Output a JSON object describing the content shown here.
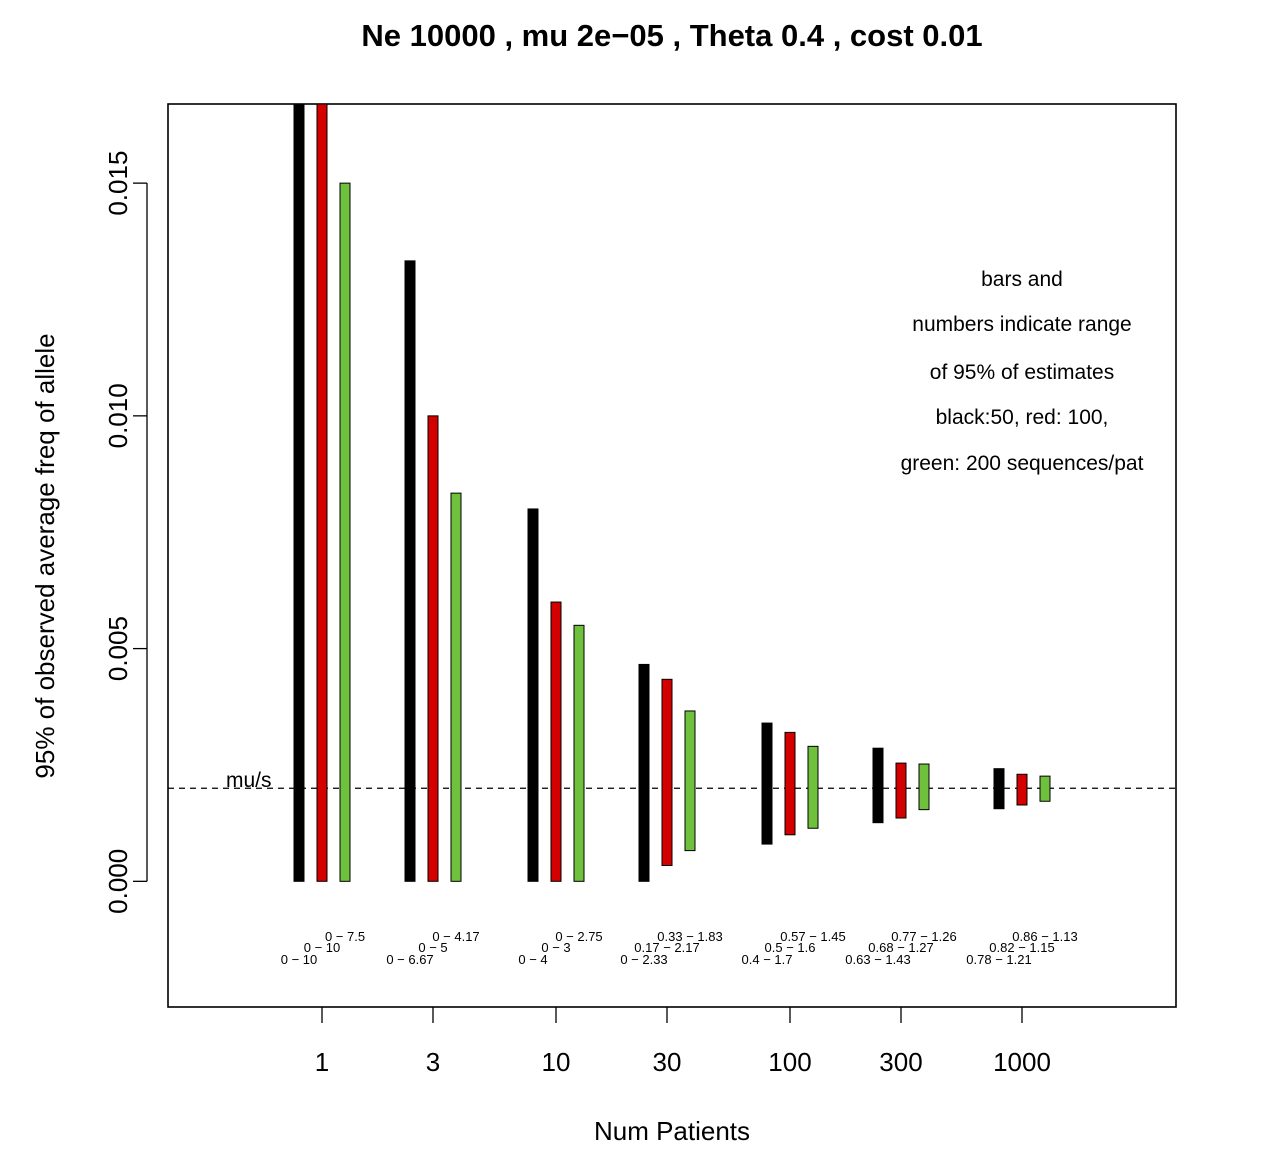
{
  "chart_data": {
    "type": "bar",
    "title": "Ne 10000 , mu 2e−05 , Theta 0.4 , cost 0.01",
    "xlabel": "Num Patients",
    "ylabel": "95% of observed average freq of allele",
    "ylim": [
      -0.0027,
      0.0167
    ],
    "yticks": [
      "0.000",
      "0.005",
      "0.010",
      "0.015"
    ],
    "ytick_values": [
      0,
      0.005,
      0.01,
      0.015
    ],
    "categories": [
      "1",
      "3",
      "10",
      "30",
      "100",
      "300",
      "1000"
    ],
    "reference_line": {
      "label": "mu/s",
      "value": 0.002,
      "style": "dashed"
    },
    "legend_lines": [
      "bars and",
      "numbers indicate range",
      "of 95% of estimates",
      "black:50, red: 100,",
      "green: 200 sequences/pat"
    ],
    "series": [
      {
        "color": "#000000",
        "low": [
          0,
          0,
          0,
          0,
          0.0008,
          0.00126,
          0.00156
        ],
        "high": [
          0.0167,
          0.01333,
          0.008,
          0.00466,
          0.0034,
          0.00286,
          0.00242
        ],
        "labels": [
          "0 − 10",
          "0 − 6.67",
          "0 − 4",
          "0 − 2.33",
          "0.4 − 1.7",
          "0.63 − 1.43",
          "0.78 − 1.21"
        ]
      },
      {
        "color": "#d40000",
        "low": [
          0,
          0,
          0,
          0.00034,
          0.001,
          0.00136,
          0.00164
        ],
        "high": [
          0.0167,
          0.01,
          0.006,
          0.00434,
          0.0032,
          0.00254,
          0.0023
        ],
        "labels": [
          "0 − 10",
          "0 − 5",
          "0 − 3",
          "0.17 − 2.17",
          "0.5 − 1.6",
          "0.68 − 1.27",
          "0.82 − 1.15"
        ]
      },
      {
        "color": "#6fc03c",
        "low": [
          0,
          0,
          0,
          0.00066,
          0.00114,
          0.00154,
          0.00172
        ],
        "high": [
          0.015,
          0.00834,
          0.0055,
          0.00366,
          0.0029,
          0.00252,
          0.00226
        ],
        "labels": [
          "0 − 7.5",
          "0 − 4.17",
          "0 − 2.75",
          "0.33 − 1.83",
          "0.57 − 1.45",
          "0.77 − 1.26",
          "0.86 − 1.13"
        ]
      }
    ]
  }
}
